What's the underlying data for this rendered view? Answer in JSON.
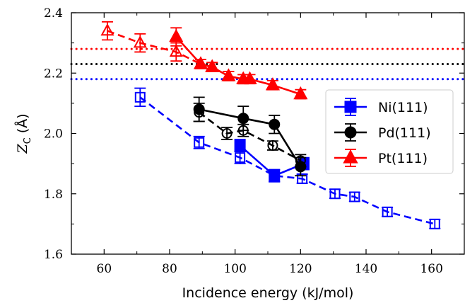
{
  "chart_data": {
    "type": "scatter",
    "xlabel": "Incidence energy (kJ/mol)",
    "ylabel_symbol": "Z",
    "ylabel_subscript": "C",
    "ylabel_unit": "(Å)",
    "xlim": [
      50,
      170
    ],
    "ylim": [
      1.6,
      2.4
    ],
    "xticks": [
      60,
      80,
      100,
      120,
      140,
      160
    ],
    "yticks": [
      1.6,
      1.8,
      2.0,
      2.2,
      2.4
    ],
    "xtick_labels": [
      "60",
      "80",
      "100",
      "120",
      "140",
      "160"
    ],
    "ytick_labels": [
      "1.6",
      "1.8",
      "2.0",
      "2.2",
      "2.4"
    ],
    "grid": false,
    "legend_position": "right",
    "hlines": [
      {
        "y": 2.28,
        "color": "#ff0000",
        "style": "dotted"
      },
      {
        "y": 2.23,
        "color": "#000000",
        "style": "dotted"
      },
      {
        "y": 2.18,
        "color": "#0000ff",
        "style": "dotted"
      }
    ],
    "series": [
      {
        "name": "Ni(111)",
        "color": "#0000ff",
        "marker": "square",
        "solid": {
          "x": [
            101.5,
            112,
            121
          ],
          "y": [
            1.96,
            1.86,
            1.9
          ],
          "err": [
            0.02,
            0.02,
            0.02
          ]
        },
        "dashed": {
          "x": [
            71,
            89,
            101.5,
            112,
            120.5,
            130.5,
            136.5,
            146.5,
            161
          ],
          "y": [
            2.12,
            1.97,
            1.92,
            1.86,
            1.85,
            1.8,
            1.79,
            1.74,
            1.7
          ],
          "err": [
            0.03,
            0.02,
            0.02,
            0.02,
            0.015,
            0.015,
            0.015,
            0.015,
            0.015
          ]
        }
      },
      {
        "name": "Pd(111)",
        "color": "#000000",
        "marker": "circle",
        "solid": {
          "x": [
            89,
            102.5,
            112,
            120
          ],
          "y": [
            2.08,
            2.05,
            2.03,
            1.89
          ],
          "err": [
            0.04,
            0.04,
            0.03,
            0.03
          ]
        },
        "dashed": {
          "x": [
            89,
            97.5,
            102.5,
            111.5,
            120
          ],
          "y": [
            2.07,
            2.0,
            2.01,
            1.96,
            1.91
          ],
          "err": [
            0.03,
            0.02,
            0.02,
            0.015,
            0.02
          ]
        }
      },
      {
        "name": "Pt(111)",
        "color": "#ff0000",
        "marker": "triangle",
        "solid": {
          "x": [
            82,
            89.5,
            93,
            98,
            102.5,
            104.5,
            111.5,
            120
          ],
          "y": [
            2.32,
            2.23,
            2.22,
            2.19,
            2.18,
            2.18,
            2.16,
            2.13
          ],
          "err": [
            0.03,
            0.015,
            0.015,
            0.015,
            0.015,
            0.015,
            0.015,
            0.015
          ]
        },
        "dashed": {
          "x": [
            61,
            71,
            82,
            89.5,
            93,
            98,
            102.5
          ],
          "y": [
            2.34,
            2.3,
            2.27,
            2.23,
            2.22,
            2.19,
            2.18
          ],
          "err": [
            0.03,
            0.03,
            0.03,
            0.015,
            0.015,
            0.015,
            0.015
          ]
        }
      }
    ]
  }
}
